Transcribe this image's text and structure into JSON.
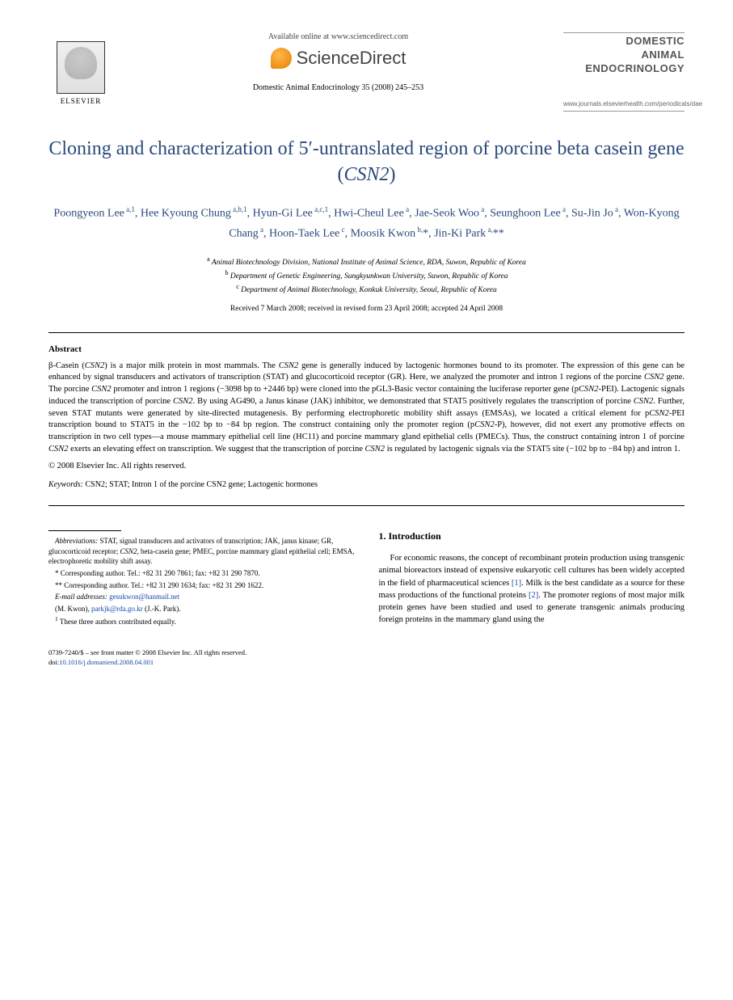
{
  "header": {
    "elsevier_label": "ELSEVIER",
    "available_online": "Available online at www.sciencedirect.com",
    "sciencedirect_label": "ScienceDirect",
    "journal_ref": "Domestic Animal Endocrinology 35 (2008) 245–253",
    "journal_name_line1": "DOMESTIC",
    "journal_name_line2": "ANIMAL",
    "journal_name_line3": "ENDOCRINOLOGY",
    "journal_url": "www.journals.elsevierhealth.com/periodicals/dae"
  },
  "title": "Cloning and characterization of 5′-untranslated region of porcine beta casein gene (CSN2)",
  "authors_html": "Poongyeon Lee<sup> a,1</sup>, Hee Kyoung Chung<sup> a,b,1</sup>, Hyun-Gi Lee<sup> a,c,1</sup>, Hwi-Cheul Lee<sup> a</sup>, Jae-Seok Woo<sup> a</sup>, Seunghoon Lee<sup> a</sup>, Su-Jin Jo<sup> a</sup>, Won-Kyong Chang<sup> a</sup>, Hoon-Taek Lee<sup> c</sup>, Moosik Kwon<sup> b,</sup>*, Jin-Ki Park<sup> a,</sup>**",
  "affiliations": {
    "a": "Animal Biotechnology Division, National Institute of Animal Science, RDA, Suwon, Republic of Korea",
    "b": "Department of Genetic Engineering, Sungkyunkwan University, Suwon, Republic of Korea",
    "c": "Department of Animal Biotechnology, Konkuk University, Seoul, Republic of Korea"
  },
  "dates": "Received 7 March 2008; received in revised form 23 April 2008; accepted 24 April 2008",
  "abstract_heading": "Abstract",
  "abstract_body": "β-Casein (CSN2) is a major milk protein in most mammals. The CSN2 gene is generally induced by lactogenic hormones bound to its promoter. The expression of this gene can be enhanced by signal transducers and activators of transcription (STAT) and glucocorticoid receptor (GR). Here, we analyzed the promoter and intron 1 regions of the porcine CSN2 gene. The porcine CSN2 promoter and intron 1 regions (−3098 bp to +2446 bp) were cloned into the pGL3-Basic vector containing the luciferase reporter gene (pCSN2-PEI). Lactogenic signals induced the transcription of porcine CSN2. By using AG490, a Janus kinase (JAK) inhibitor, we demonstrated that STAT5 positively regulates the transcription of porcine CSN2. Further, seven STAT mutants were generated by site-directed mutagenesis. By performing electrophoretic mobility shift assays (EMSAs), we located a critical element for pCSN2-PEI transcription bound to STAT5 in the −102 bp to −84 bp region. The construct containing only the promoter region (pCSN2-P), however, did not exert any promotive effects on transcription in two cell types—a mouse mammary epithelial cell line (HC11) and porcine mammary gland epithelial cells (PMECs). Thus, the construct containing intron 1 of porcine CSN2 exerts an elevating effect on transcription. We suggest that the transcription of porcine CSN2 is regulated by lactogenic signals via the STAT5 site (−102 bp to −84 bp) and intron 1.",
  "copyright": "© 2008 Elsevier Inc. All rights reserved.",
  "keywords_label": "Keywords:",
  "keywords": "CSN2; STAT; Intron 1 of the porcine CSN2 gene; Lactogenic hormones",
  "footnotes": {
    "abbrev_label": "Abbreviations:",
    "abbrev_text": "STAT, signal transducers and activators of transcription; JAK, janus kinase; GR, glucocorticoid receptor; CSN2, beta-casein gene; PMEC, porcine mammary gland epithelial cell; EMSA, electrophoretic mobility shift assay.",
    "corr1": "Corresponding author. Tel.: +82 31 290 7861; fax: +82 31 290 7870.",
    "corr2": "Corresponding author. Tel.: +82 31 290 1634; fax: +82 31 290 1622.",
    "email_label": "E-mail addresses:",
    "email1": "gesukwon@hanmail.net",
    "email1_author": "(M. Kwon),",
    "email2": "parkjk@rda.go.kr",
    "email2_author": "(J.-K. Park).",
    "note1": "These three authors contributed equally."
  },
  "intro_heading": "1.  Introduction",
  "intro_body": "For economic reasons, the concept of recombinant protein production using transgenic animal bioreactors instead of expensive eukaryotic cell cultures has been widely accepted in the field of pharmaceutical sciences [1]. Milk is the best candidate as a source for these mass productions of the functional proteins [2]. The promoter regions of most major milk protein genes have been studied and used to generate transgenic animals producing foreign proteins in the mammary gland using the",
  "bottom": {
    "issn_line": "0739-7240/$ – see front matter © 2008 Elsevier Inc. All rights reserved.",
    "doi_label": "doi:",
    "doi": "10.1016/j.domaniend.2008.04.001"
  }
}
